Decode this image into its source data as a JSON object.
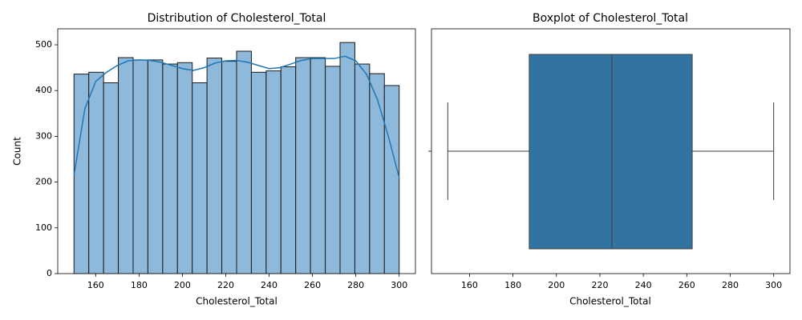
{
  "chart_data": [
    {
      "type": "histogram",
      "title": "Distribution of Cholesterol_Total",
      "x_label": "Cholesterol_Total",
      "y_label": "Count",
      "bins": [
        150,
        156.82,
        163.64,
        170.45,
        177.27,
        184.09,
        190.91,
        197.73,
        204.55,
        211.36,
        218.18,
        225,
        231.82,
        238.64,
        245.45,
        252.27,
        259.09,
        265.91,
        272.73,
        279.55,
        286.36,
        293.18,
        300
      ],
      "values": [
        436,
        440,
        417,
        472,
        467,
        467,
        458,
        461,
        417,
        471,
        464,
        486,
        440,
        443,
        452,
        472,
        472,
        453,
        505,
        458,
        437,
        411
      ],
      "color": "#8fb9da",
      "edge_color": "#1a1a1a",
      "kde": {
        "color": "#1f77b4",
        "x": [
          150,
          155,
          160,
          165,
          170,
          175,
          180,
          185,
          190,
          195,
          200,
          205,
          210,
          215,
          220,
          225,
          230,
          235,
          240,
          245,
          250,
          255,
          260,
          265,
          270,
          275,
          280,
          285,
          290,
          295,
          300
        ],
        "y": [
          215,
          360,
          420,
          440,
          455,
          465,
          467,
          466,
          462,
          455,
          448,
          444,
          450,
          460,
          465,
          466,
          462,
          455,
          448,
          450,
          458,
          466,
          470,
          470,
          470,
          475,
          465,
          435,
          380,
          300,
          210
        ]
      },
      "xlim": [
        142.5,
        307.5
      ],
      "ylim": [
        0,
        535
      ],
      "xticks": [
        160,
        180,
        200,
        220,
        240,
        260,
        280,
        300
      ],
      "yticks": [
        0,
        100,
        200,
        300,
        400,
        500
      ]
    },
    {
      "type": "box",
      "title": "Boxplot of Cholesterol_Total",
      "x_label": "Cholesterol_Total",
      "stats": {
        "min": 150,
        "q1": 187.5,
        "median": 225.5,
        "q3": 262.5,
        "max": 300
      },
      "color": "#3274a1",
      "line_color": "#3d3d3d",
      "xlim": [
        142.5,
        307.5
      ],
      "xticks": [
        160,
        180,
        200,
        220,
        240,
        260,
        280,
        300
      ]
    }
  ]
}
